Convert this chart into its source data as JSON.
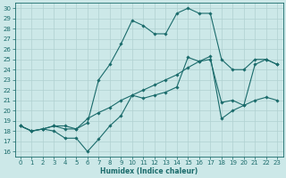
{
  "xlabel": "Humidex (Indice chaleur)",
  "bg_color": "#cce8e8",
  "line_color": "#1a6b6b",
  "grid_color": "#b0d0d0",
  "xlim": [
    -0.5,
    23.5
  ],
  "ylim": [
    15.5,
    30.5
  ],
  "xticks": [
    0,
    1,
    2,
    3,
    4,
    5,
    6,
    7,
    8,
    9,
    10,
    11,
    12,
    13,
    14,
    15,
    16,
    17,
    18,
    19,
    20,
    21,
    22,
    23
  ],
  "yticks": [
    16,
    17,
    18,
    19,
    20,
    21,
    22,
    23,
    24,
    25,
    26,
    27,
    28,
    29,
    30
  ],
  "line1_y": [
    18.5,
    18.0,
    18.2,
    18.0,
    17.3,
    17.3,
    16.0,
    17.2,
    18.5,
    19.5,
    21.5,
    21.2,
    21.5,
    21.8,
    22.3,
    25.2,
    24.8,
    25.0,
    20.8,
    21.0,
    20.5,
    24.5,
    25.0,
    24.5
  ],
  "line2_y": [
    18.5,
    18.0,
    18.2,
    18.5,
    18.2,
    18.2,
    19.2,
    19.8,
    20.3,
    21.0,
    21.5,
    22.0,
    22.5,
    23.0,
    23.5,
    24.2,
    24.8,
    25.3,
    19.2,
    20.0,
    20.5,
    21.0,
    21.3,
    21.0
  ],
  "line3_y": [
    18.5,
    18.0,
    18.2,
    18.5,
    18.5,
    18.2,
    18.8,
    23.0,
    24.5,
    26.5,
    28.8,
    28.3,
    27.5,
    27.5,
    29.5,
    30.0,
    29.5,
    29.5,
    25.0,
    24.0,
    24.0,
    25.0,
    25.0,
    24.5
  ]
}
